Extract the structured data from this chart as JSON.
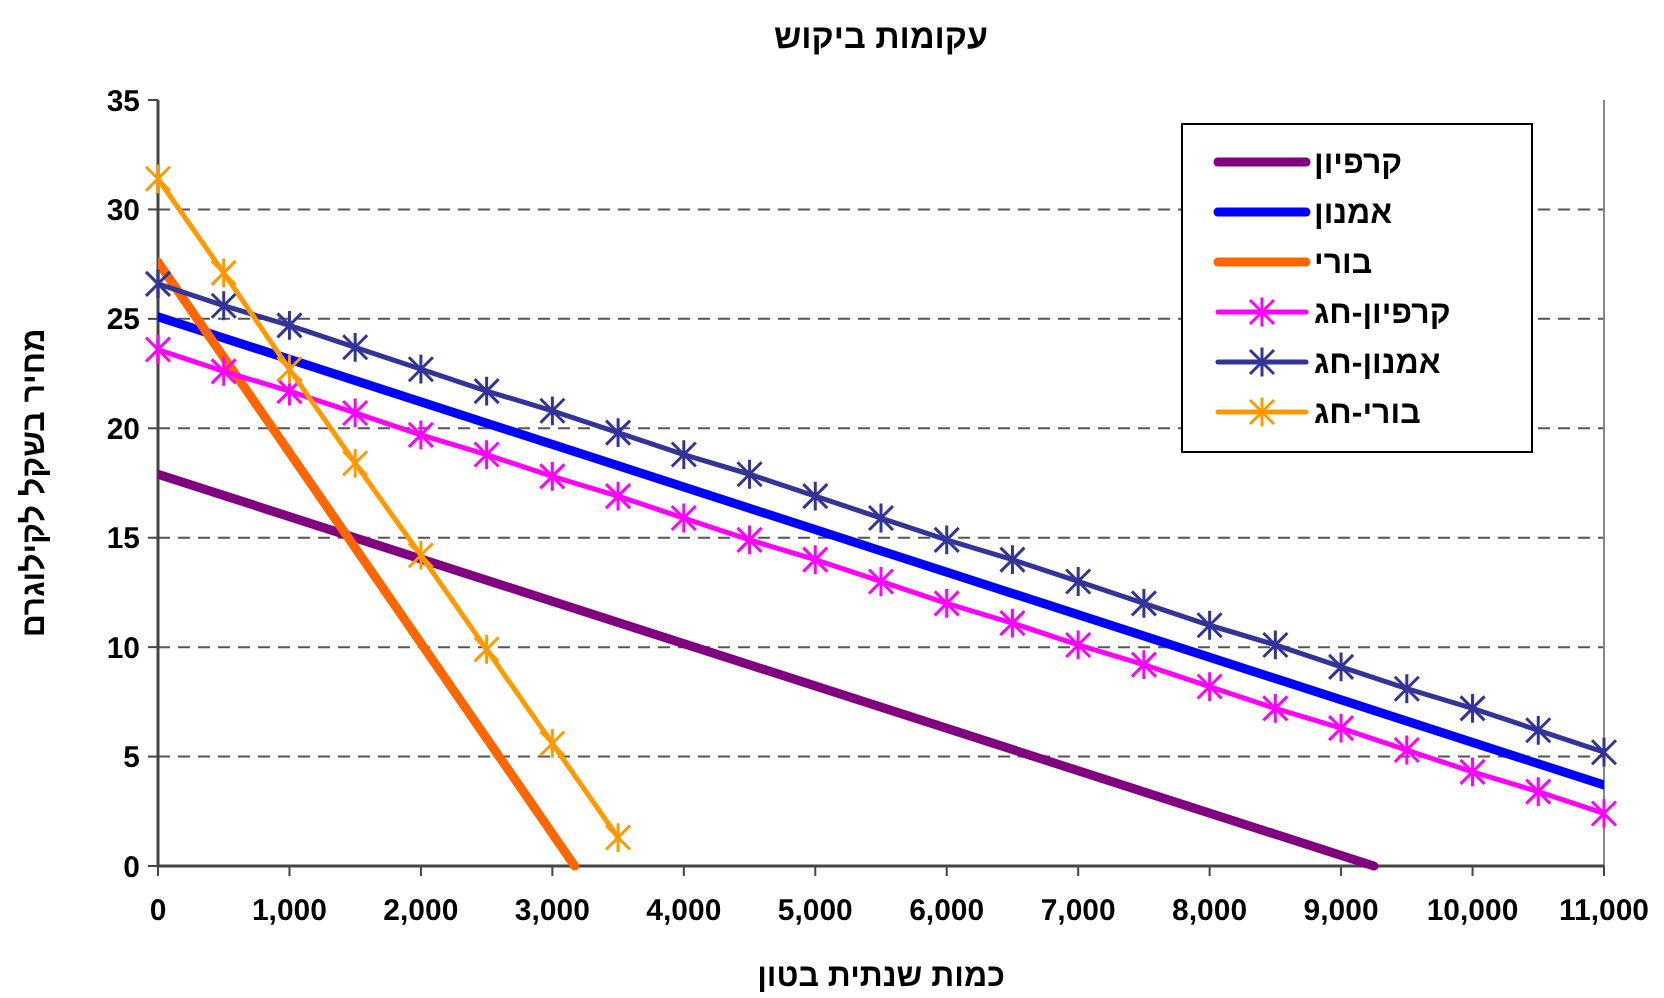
{
  "chart_data": {
    "type": "line",
    "title": "עקומות ביקוש",
    "xlabel": "כמות שנתית בטון",
    "ylabel": "מחיר בשקל לקילוגרם",
    "xlim": [
      0,
      11000
    ],
    "ylim": [
      0,
      35
    ],
    "xticks": [
      0,
      {
        "value": 1000,
        "label": "1,000"
      },
      {
        "value": 2000,
        "label": "2,000"
      },
      {
        "value": 3000,
        "label": "3,000"
      },
      {
        "value": 4000,
        "label": "4,000"
      },
      {
        "value": 5000,
        "label": "5,000"
      },
      {
        "value": 6000,
        "label": "6,000"
      },
      {
        "value": 7000,
        "label": "7,000"
      },
      {
        "value": 8000,
        "label": "8,000"
      },
      {
        "value": 9000,
        "label": "9,000"
      },
      {
        "value": 10000,
        "label": "10,000"
      },
      {
        "value": 11000,
        "label": "11,000"
      }
    ],
    "yticks": [
      0,
      5,
      10,
      15,
      20,
      25,
      30,
      35
    ],
    "grid": "y",
    "legend": "top right",
    "series": [
      {
        "name": "קרפיון",
        "color": "#800080",
        "marker": "none",
        "x": [
          0,
          9250
        ],
        "values": [
          17.9,
          0
        ]
      },
      {
        "name": "אמנון",
        "color": "#0000ff",
        "marker": "none",
        "x": [
          0,
          11000
        ],
        "values": [
          25.1,
          3.7
        ]
      },
      {
        "name": "בורי",
        "color": "#ff6600",
        "marker": "none",
        "x": [
          0,
          3170
        ],
        "values": [
          27.6,
          0
        ]
      },
      {
        "name": "קרפיון-חג",
        "color": "#ff00ff",
        "marker": "cross",
        "x": [
          0,
          500,
          1000,
          1500,
          2000,
          2500,
          3000,
          3500,
          4000,
          4500,
          5000,
          5500,
          6000,
          6500,
          7000,
          7500,
          8000,
          8500,
          9000,
          9500,
          10000,
          10500,
          11000
        ],
        "values": [
          23.6,
          22.6,
          21.7,
          20.7,
          19.7,
          18.8,
          17.8,
          16.9,
          15.9,
          14.9,
          14.0,
          13.0,
          12.0,
          11.1,
          10.1,
          9.2,
          8.2,
          7.2,
          6.3,
          5.3,
          4.3,
          3.4,
          2.4
        ]
      },
      {
        "name": "אמנון-חג",
        "color": "#333399",
        "marker": "cross",
        "x": [
          0,
          500,
          1000,
          1500,
          2000,
          2500,
          3000,
          3500,
          4000,
          4500,
          5000,
          5500,
          6000,
          6500,
          7000,
          7500,
          8000,
          8500,
          9000,
          9500,
          10000,
          10500,
          11000
        ],
        "values": [
          26.6,
          25.6,
          24.7,
          23.7,
          22.7,
          21.7,
          20.8,
          19.8,
          18.8,
          17.9,
          16.9,
          15.9,
          14.9,
          14.0,
          13.0,
          12.0,
          11.0,
          10.1,
          9.1,
          8.1,
          7.2,
          6.2,
          5.2
        ]
      },
      {
        "name": "בורי-חג",
        "color": "#ff9900",
        "marker": "cross",
        "x": [
          0,
          500,
          1000,
          1500,
          2000,
          2500,
          3000,
          3500
        ],
        "values": [
          31.4,
          27.1,
          22.7,
          18.4,
          14.2,
          9.9,
          5.6,
          1.3
        ]
      }
    ]
  }
}
